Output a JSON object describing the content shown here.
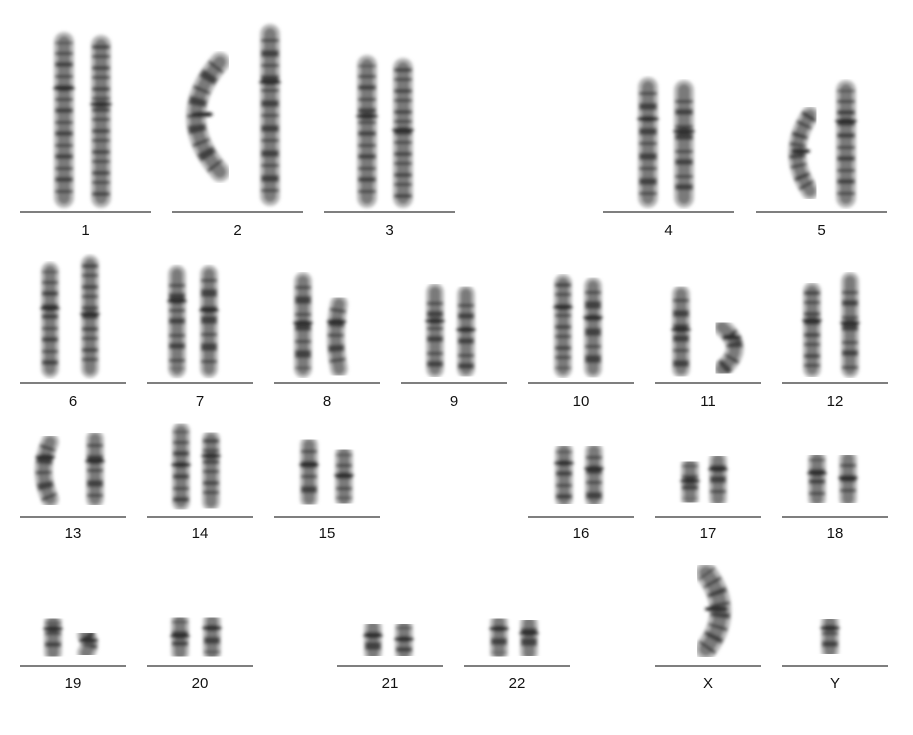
{
  "karyotype": {
    "groups": [
      {
        "label": "1"
      },
      {
        "label": "2"
      },
      {
        "label": "3"
      },
      {
        "label": "4"
      },
      {
        "label": "5"
      },
      {
        "label": "6"
      },
      {
        "label": "7"
      },
      {
        "label": "8"
      },
      {
        "label": "9"
      },
      {
        "label": "10"
      },
      {
        "label": "11"
      },
      {
        "label": "12"
      },
      {
        "label": "13"
      },
      {
        "label": "14"
      },
      {
        "label": "15"
      },
      {
        "label": "16"
      },
      {
        "label": "17"
      },
      {
        "label": "18"
      },
      {
        "label": "19"
      },
      {
        "label": "20"
      },
      {
        "label": "21"
      },
      {
        "label": "22"
      },
      {
        "label": "X"
      },
      {
        "label": "Y"
      }
    ],
    "colors": {
      "chromosome_light": "#b9b9b9",
      "chromosome_mid": "#7a7a7a",
      "chromosome_dark": "#2e2e2e",
      "baseline": "#333333",
      "background": "#ffffff"
    }
  }
}
